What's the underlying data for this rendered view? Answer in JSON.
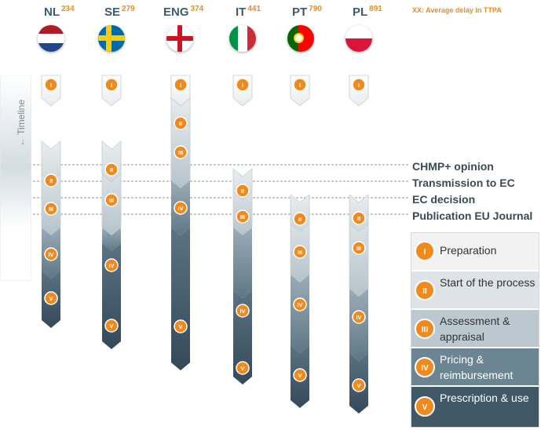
{
  "legend_note": "XX: Average delay in TTPA",
  "countries": [
    {
      "code": "NL",
      "delay": "234"
    },
    {
      "code": "SE",
      "delay": "279"
    },
    {
      "code": "ENG",
      "delay": "374"
    },
    {
      "code": "IT",
      "delay": "441"
    },
    {
      "code": "PT",
      "delay": "790"
    },
    {
      "code": "PL",
      "delay": "891"
    }
  ],
  "timeline_label": "← Timeline",
  "events": {
    "chmp": "CHMP+ opinion",
    "transmission": "Transmission to EC",
    "ec_decision": "EC decision",
    "publication": "Publication EU Journal"
  },
  "phases": [
    {
      "numeral": "I",
      "label": "Preparation",
      "color": "#f2f2f2"
    },
    {
      "numeral": "II",
      "label": "Start of the process",
      "color": "#dde3e6"
    },
    {
      "numeral": "III",
      "label": "Assessment & appraisal",
      "color": "#bcc8cf"
    },
    {
      "numeral": "IV",
      "label": "Pricing & reimbursement",
      "color": "#6c8593"
    },
    {
      "numeral": "V",
      "label": "Prescription & use",
      "color": "#415866"
    }
  ],
  "colors": {
    "accent": "#f08a1c",
    "badge_border": "#ffffff"
  }
}
